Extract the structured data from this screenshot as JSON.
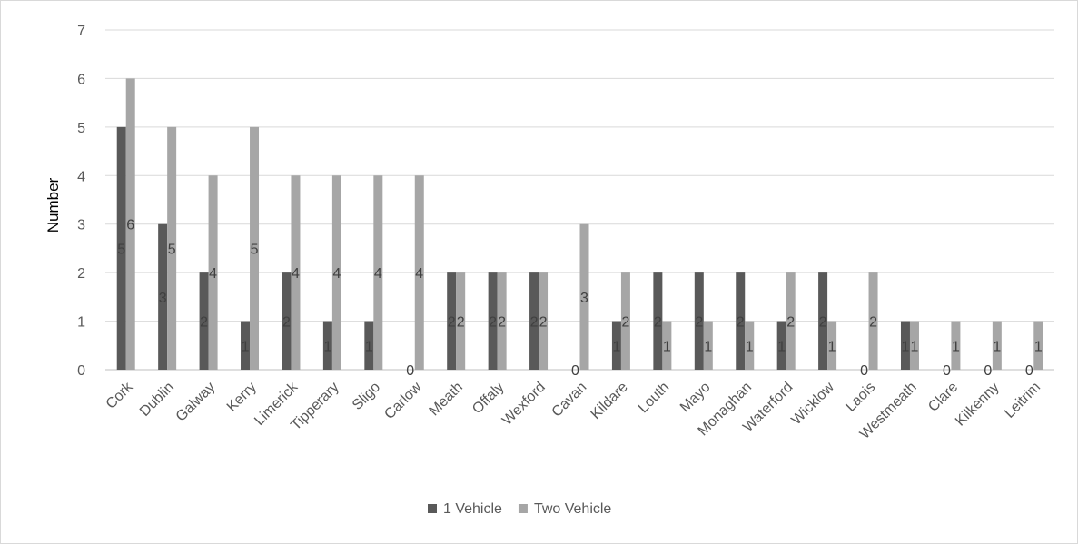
{
  "chart_data": {
    "type": "bar",
    "title": "",
    "xlabel": "",
    "ylabel": "Number",
    "ylim": [
      0,
      7
    ],
    "yticks": [
      0,
      1,
      2,
      3,
      4,
      5,
      6,
      7
    ],
    "grid": true,
    "legend_position": "bottom",
    "categories": [
      "Cork",
      "Dublin",
      "Galway",
      "Kerry",
      "Limerick",
      "Tipperary",
      "Sligo",
      "Carlow",
      "Meath",
      "Offaly",
      "Wexford",
      "Cavan",
      "Kildare",
      "Louth",
      "Mayo",
      "Monaghan",
      "Waterford",
      "Wicklow",
      "Laois",
      "Westmeath",
      "Clare",
      "Kilkenny",
      "Leitrim"
    ],
    "series": [
      {
        "name": "1 Vehicle",
        "color": "#595959",
        "values": [
          5,
          3,
          2,
          1,
          2,
          1,
          1,
          0,
          2,
          2,
          2,
          0,
          1,
          2,
          2,
          2,
          1,
          2,
          0,
          1,
          0,
          0,
          0
        ]
      },
      {
        "name": "Two Vehicle",
        "color": "#a6a6a6",
        "values": [
          6,
          5,
          4,
          5,
          4,
          4,
          4,
          4,
          2,
          2,
          2,
          3,
          2,
          1,
          1,
          1,
          2,
          1,
          2,
          1,
          1,
          1,
          1
        ]
      }
    ]
  }
}
